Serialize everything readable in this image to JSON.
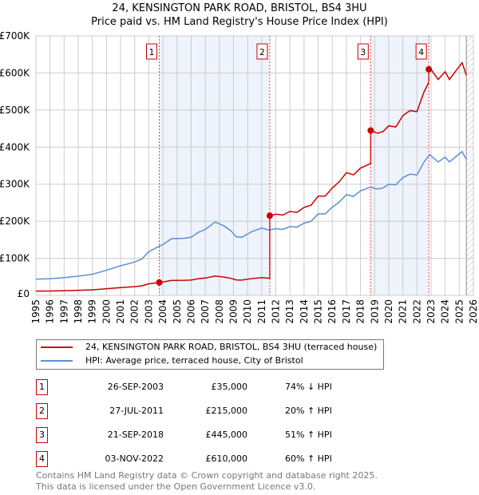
{
  "chart_data": {
    "type": "line",
    "title": "24, KENSINGTON PARK ROAD, BRISTOL, BS4 3HU",
    "subtitle": "Price paid vs. HM Land Registry's House Price Index (HPI)",
    "xlim": [
      1995,
      2026
    ],
    "ylim": [
      0,
      700000
    ],
    "x_ticks": [
      "1995",
      "1996",
      "1997",
      "1998",
      "1999",
      "2000",
      "2001",
      "2002",
      "2003",
      "2004",
      "2005",
      "2006",
      "2007",
      "2008",
      "2009",
      "2010",
      "2011",
      "2012",
      "2013",
      "2014",
      "2015",
      "2016",
      "2017",
      "2018",
      "2019",
      "2020",
      "2021",
      "2022",
      "2023",
      "2024",
      "2025",
      "2026"
    ],
    "y_ticks": [
      {
        "v": 0,
        "label": "£0"
      },
      {
        "v": 100000,
        "label": "£100K"
      },
      {
        "v": 200000,
        "label": "£200K"
      },
      {
        "v": 300000,
        "label": "£300K"
      },
      {
        "v": 400000,
        "label": "£400K"
      },
      {
        "v": 500000,
        "label": "£500K"
      },
      {
        "v": 600000,
        "label": "£600K"
      },
      {
        "v": 700000,
        "label": "£700K"
      }
    ],
    "grid": true,
    "colors": {
      "property": "#cc0000",
      "hpi": "#5b8fd4",
      "shade": "#eef3fc",
      "marker_line": "#ee4444"
    },
    "hpi_series": [
      [
        1995,
        44000
      ],
      [
        1996,
        45000
      ],
      [
        1997,
        48000
      ],
      [
        1998,
        52000
      ],
      [
        1999,
        57000
      ],
      [
        2000,
        68000
      ],
      [
        2001,
        80000
      ],
      [
        2002,
        90000
      ],
      [
        2002.5,
        98000
      ],
      [
        2003,
        118000
      ],
      [
        2003.7,
        132000
      ],
      [
        2004,
        137000
      ],
      [
        2004.6,
        153000
      ],
      [
        2005.5,
        154000
      ],
      [
        2006,
        157000
      ],
      [
        2006.5,
        170000
      ],
      [
        2007,
        178000
      ],
      [
        2007.7,
        198000
      ],
      [
        2008.3,
        188000
      ],
      [
        2008.8,
        175000
      ],
      [
        2009.2,
        158000
      ],
      [
        2009.6,
        157000
      ],
      [
        2010.3,
        172000
      ],
      [
        2011,
        182000
      ],
      [
        2011.5,
        176000
      ],
      [
        2012,
        180000
      ],
      [
        2012.5,
        178000
      ],
      [
        2013,
        186000
      ],
      [
        2013.5,
        184000
      ],
      [
        2014,
        195000
      ],
      [
        2014.5,
        200000
      ],
      [
        2015,
        220000
      ],
      [
        2015.5,
        220000
      ],
      [
        2016,
        238000
      ],
      [
        2016.5,
        252000
      ],
      [
        2017,
        272000
      ],
      [
        2017.5,
        267000
      ],
      [
        2018,
        282000
      ],
      [
        2018.7,
        292000
      ],
      [
        2019.2,
        287000
      ],
      [
        2019.6,
        290000
      ],
      [
        2020,
        300000
      ],
      [
        2020.5,
        298000
      ],
      [
        2021,
        318000
      ],
      [
        2021.5,
        327000
      ],
      [
        2022,
        325000
      ],
      [
        2022.5,
        360000
      ],
      [
        2022.9,
        380000
      ],
      [
        2023.5,
        360000
      ],
      [
        2024,
        373000
      ],
      [
        2024.3,
        360000
      ],
      [
        2025,
        382000
      ],
      [
        2025.2,
        388000
      ],
      [
        2025.5,
        367000
      ]
    ],
    "sales": [
      {
        "x": 2003.74,
        "value": 35000
      },
      {
        "x": 2011.57,
        "value": 215000
      },
      {
        "x": 2018.72,
        "value": 445000
      },
      {
        "x": 2022.84,
        "value": 610000
      }
    ],
    "data_end": 2025.5
  },
  "legend": {
    "property": "24, KENSINGTON PARK ROAD, BRISTOL, BS4 3HU (terraced house)",
    "hpi": "HPI: Average price, terraced house, City of Bristol"
  },
  "transactions": [
    {
      "num": "1",
      "date": "26-SEP-2003",
      "price": "£35,000",
      "pct": "74% ↓ HPI"
    },
    {
      "num": "2",
      "date": "27-JUL-2011",
      "price": "£215,000",
      "pct": "20% ↑ HPI"
    },
    {
      "num": "3",
      "date": "21-SEP-2018",
      "price": "£445,000",
      "pct": "51% ↑ HPI"
    },
    {
      "num": "4",
      "date": "03-NOV-2022",
      "price": "£610,000",
      "pct": "60% ↑ HPI"
    }
  ],
  "footer": [
    "Contains HM Land Registry data © Crown copyright and database right 2025.",
    "This data is licensed under the Open Government Licence v3.0."
  ]
}
